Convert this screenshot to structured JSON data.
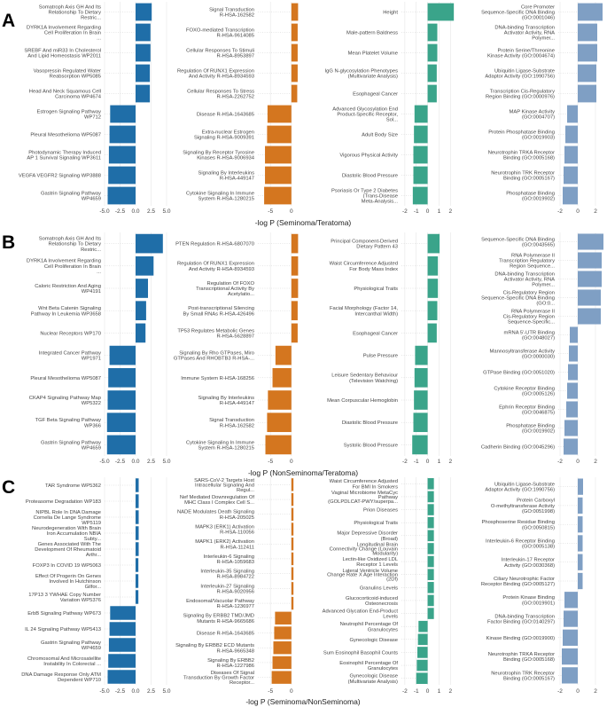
{
  "colors": {
    "blue": "#1f6ea8",
    "orange": "#d4761f",
    "green": "#3aa48a",
    "slate": "#7f9fc4",
    "grid": "#e6e6e6"
  },
  "chart_data": [
    {
      "panel": "A",
      "type": "bar",
      "xlabel": "-log P (Seminoma/Teratoma)",
      "subplots": [
        {
          "color": "blue",
          "xlim": [
            -5,
            5
          ],
          "ticks": [
            -5.0,
            -2.5,
            0.0,
            2.5,
            5.0
          ],
          "tick_labels": [
            "-5.0",
            "-2.5",
            "0.0",
            "2.5",
            "5.0"
          ],
          "categories": [
            "Somatroph Axis GH And Its Relationship To Dietary Restric...",
            "DYRK1A Involvement Regarding Cell Proliferation In Brain ...",
            "SREBF And miR33 In Cholesterol And Lipid Homeostasis WP2011",
            "Vasopressin Regulated Water Reabsorption WP5085",
            "Head And Neck Squamous Cell Carcinoma WP4674",
            "Estrogen Signaling Pathway WP712",
            "Pleural Mesothelioma WP5087",
            "Photodynamic Therapy Induced AP 1 Survival Signaling WP3611",
            "VEGFA VEGFR2 Signaling WP3888",
            "Gastrin Signaling Pathway WP4659"
          ],
          "values": [
            2.6,
            2.4,
            2.4,
            2.3,
            2.3,
            -4.1,
            -4.2,
            -4.3,
            -4.4,
            -4.5
          ]
        },
        {
          "color": "orange",
          "xlim": [
            -8,
            3
          ],
          "ticks": [
            -5,
            0
          ],
          "tick_labels": [
            "-5",
            "0"
          ],
          "categories": [
            "Signal Transduction R-HSA-162582",
            "FOXO-mediated Transcription R-HSA-9614085",
            "Cellular Responses To Stimuli R-HSA-8953897",
            "Regulation Of RUNX1 Expression And Activity R-HSA-8934593",
            "Cellular Responses To Stress R-HSA-2262752",
            "Disease R-HSA-1643685",
            "Extra-nuclear Estrogen Signaling R-HSA-9009391",
            "Signaling By Receptor Tyrosine Kinases R-HSA-9006934",
            "Signaling By Interleukins R-HSA-449147",
            "Cytokine Signaling In Immune System R-HSA-1280215"
          ],
          "values": [
            1.6,
            1.5,
            1.5,
            1.5,
            1.4,
            -5.7,
            -5.8,
            -6.3,
            -6.3,
            -6.5
          ]
        },
        {
          "color": "green",
          "xlim": [
            -2.3,
            2.6
          ],
          "ticks": [
            -2,
            -1,
            0,
            1,
            2
          ],
          "tick_labels": [
            "-2",
            "-1",
            "0",
            "1",
            "2"
          ],
          "categories": [
            "Height",
            "Male-pattern Baldness",
            "Mean Platelet Volume",
            "IgG N-glycosylation Phenotypes (Multivariate Analysis)",
            "Esophageal Cancer",
            "Advanced Glycosylation End Product-Specific Receptor, Sol...",
            "Adult Body Size",
            "Vigorous Physical Activity",
            "Diastolic Blood Pressure",
            "Psoriasis Or Type 2 Diabetes (Trans-Disease Meta-Analysis..."
          ],
          "values": [
            2.3,
            0.85,
            0.85,
            0.8,
            0.8,
            -1.15,
            -1.2,
            -1.25,
            -1.25,
            -1.3
          ]
        },
        {
          "color": "slate",
          "xlim": [
            -2.2,
            3.1
          ],
          "ticks": [
            -2,
            0,
            2
          ],
          "tick_labels": [
            "-2",
            "0",
            "2"
          ],
          "categories": [
            "Core Promoter Sequence-Specific DNA Binding (GO:0001046)",
            "DNA-binding Transcription Activator Activity, RNA Polymer...",
            "Protein Serine/Threonine Kinase Activity (GO:0004674)",
            "Ubiquitin Ligase-Substrate Adaptor Activity (GO:1990756)",
            "Transcription Cis-Regulatory Region Binding (GO:0000976)",
            "MAP Kinase Activity (GO:0004707)",
            "Protein Phosphatase Binding (GO:0019903)",
            "Neurotrophin TRKA Receptor Binding (GO:0005168)",
            "Neurotrophin TRK Receptor Binding (GO:0005167)",
            "Phosphatase Binding (GO:0019902)"
          ],
          "values": [
            2.8,
            2.2,
            2.2,
            2.1,
            2.1,
            -1.2,
            -1.4,
            -1.5,
            -1.6,
            -1.7
          ]
        }
      ]
    },
    {
      "panel": "B",
      "type": "bar",
      "xlabel": "-log P (NonSeminoma/Teratoma)",
      "subplots": [
        {
          "color": "blue",
          "xlim": [
            -5,
            5
          ],
          "ticks": [
            -5.0,
            -2.5,
            0.0,
            2.5,
            5.0
          ],
          "tick_labels": [
            "-5.0",
            "-2.5",
            "0.0",
            "2.5",
            "5.0"
          ],
          "categories": [
            "Somatroph Axis GH And Its Relationship To Dietary Restric...",
            "DYRK1A Involvement Regarding Cell Proliferation In Brain ...",
            "Caloric Restriction And Aging WP4191",
            "Wnt Beta Catenin Signaling Pathway In Leukemia WP3658",
            "Nuclear Receptors WP170",
            "Integrated Cancer Pathway WP1971",
            "Pleural Mesothelioma WP5087",
            "CKAP4 Signaling Pathway Map WP5322",
            "TGF Beta Signaling Pathway WP366",
            "Gastrin Signaling Pathway WP4659"
          ],
          "values": [
            4.4,
            2.9,
            2.0,
            1.7,
            1.6,
            -4.2,
            -4.4,
            -4.5,
            -4.6,
            -4.6
          ]
        },
        {
          "color": "orange",
          "xlim": [
            -8,
            3
          ],
          "ticks": [
            -5,
            0
          ],
          "tick_labels": [
            "-5",
            "0"
          ],
          "categories": [
            "PTEN Regulation R-HSA-6807070",
            "Regulation Of RUNX1 Expression And Activity R-HSA-8934593",
            "Regulation Of FOXO Transcriptional Activity By Acetylatio...",
            "Post-transcriptional Silencing By Small RNAs R-HSA-426496",
            "TP53 Regulates Metabolic Genes R-HSA-5628897",
            "Signaling By Rho GTPases, Miro GTPases And RHOBTB3 R-HSA-...",
            "Immune System R-HSA-168256",
            "Signaling By Interleukins R-HSA-449147",
            "Signal Transduction R-HSA-162582",
            "Cytokine Signaling In Immune System R-HSA-1280215"
          ],
          "values": [
            1.6,
            1.6,
            1.6,
            1.5,
            1.5,
            -3.8,
            -4.5,
            -5.6,
            -5.8,
            -6.2
          ]
        },
        {
          "color": "green",
          "xlim": [
            -2.3,
            2.6
          ],
          "ticks": [
            -2,
            -1,
            0,
            1,
            2
          ],
          "tick_labels": [
            "-2",
            "-1",
            "0",
            "1",
            "2"
          ],
          "categories": [
            "Principal Component-Derived Dietary Pattern 43",
            "Waist Circumference Adjusted For Body Mass Index",
            "Physiological Traits",
            "Facial Morphology (Factor 14, Intercanthal Width)",
            "Esophageal Cancer",
            "Pulse Pressure",
            "Leisure Sedentary Behaviour (Television Watching)",
            "Mean Corpuscular Hemoglobin",
            "Diastolic Blood Pressure",
            "Systolic Blood Pressure"
          ],
          "values": [
            1.05,
            0.9,
            0.9,
            0.85,
            0.8,
            -1.1,
            -1.15,
            -1.2,
            -1.25,
            -1.35
          ]
        },
        {
          "color": "slate",
          "xlim": [
            -2.2,
            3.1
          ],
          "ticks": [
            -2,
            0,
            2
          ],
          "tick_labels": [
            "-2",
            "0",
            "2"
          ],
          "categories": [
            "Sequence-Specific DNA Binding (GO:0043565)",
            "RNA Polymerase II Transcription Regulatory Region Sequence...",
            "DNA-binding Transcription Activator Activity, RNA Polymer...",
            "Cis-Regulatory Region Sequence-Specific DNA Binding (GO:0...",
            "RNA Polymerase II Cis-Regulatory Region Sequence-Specific...",
            "mRNA 5'-UTR Binding (GO:0048027)",
            "Mannosyltransferase Activity (GO:0000030)",
            "GTPase Binding (GO:0051020)",
            "Cytokine Receptor Binding (GO:0005126)",
            "Ephrin Receptor Binding (GO:0046875)",
            "Phosphatase Binding (GO:0019902)",
            "Cadherin Binding (GO:0045296)"
          ],
          "values": [
            2.9,
            2.7,
            2.7,
            2.6,
            2.6,
            -0.9,
            -1.0,
            -1.1,
            -1.2,
            -1.3,
            -1.5,
            -1.6
          ]
        }
      ]
    },
    {
      "panel": "C",
      "type": "bar",
      "xlabel": "-log P (Seminoma/NonSeminoma)",
      "subplots": [
        {
          "color": "blue",
          "xlim": [
            -5,
            5
          ],
          "ticks": [
            -5.0,
            -2.5,
            0.0,
            2.5,
            5.0
          ],
          "tick_labels": [
            "-5.0",
            "-2.5",
            "0.0",
            "2.5",
            "5.0"
          ],
          "categories": [
            "TAR Syndrome WP5362",
            "Proteasome Degradation WP183",
            "NIPBL Role In DNA Damage Cornelia De Lange Syndrome WP5119",
            "Neurodegeneration With Brain Iron Accumulation NBIA Subty...",
            "Genes Associated With The Development Of Rheumatoid Arthr...",
            "FOXP3 In COVID 19 WP5063",
            "Effect Of Progerin On Genes Involved In Hutchinson Gilfor...",
            "17P13 3 YWHAE Copy Number Variation WP5376",
            "ErbB Signaling Pathway WP673",
            "IL 24 Signaling Pathway WP5413",
            "Gastrin Signaling Pathway WP4659",
            "Chromosomal And Microsatellite Instability In Colorectal ...",
            "DNA Damage Response Only ATM Dependent WP710"
          ],
          "values": [
            0.5,
            0.5,
            0.5,
            0.5,
            0.5,
            0.45,
            0.45,
            0.45,
            -4.1,
            -4.2,
            -4.3,
            -4.4,
            -4.5
          ]
        },
        {
          "color": "orange",
          "xlim": [
            -8,
            3
          ],
          "ticks": [
            -5,
            0
          ],
          "tick_labels": [
            "-5",
            "0"
          ],
          "categories": [
            "SARS-CoV-2 Targets Host Intracellular Signaling And Regul...",
            "Nef Mediated Downregulation Of MHC Class I Complex Cell S...",
            "NADE Modulates Death Signaling R-HSA-205025",
            "MAPK3 (ERK1) Activation R-HSA-110056",
            "MAPK1 (ERK2) Activation R-HSA-112411",
            "Interleukin-6 Signaling R-HSA-1059683",
            "Interleukin-35 Signaling R-HSA-8984722",
            "Interleukin-27 Signaling R-HSA-9020956",
            "Endosomal/Vacuolar Pathway R-HSA-1236977",
            "Signaling By ERBB2 TMD/JMD Mutants R-HSA-9665686",
            "Disease R-HSA-1643685",
            "Signaling By ERBB2 ECD Mutants R-HSA-9665348",
            "Signaling By ERBB2 R-HSA-1227986",
            "Diseases Of Signal Transduction By Growth Factor Receptor..."
          ],
          "values": [
            0.5,
            0.5,
            0.5,
            0.5,
            0.5,
            0.5,
            0.5,
            0.5,
            0.5,
            -3.9,
            -4.1,
            -4.3,
            -4.5,
            -4.7
          ]
        },
        {
          "color": "green",
          "xlim": [
            -2.3,
            2.6
          ],
          "ticks": [
            -2,
            -1,
            0,
            1,
            2
          ],
          "tick_labels": [
            "-2",
            "-1",
            "0",
            "1",
            "2"
          ],
          "categories": [
            "Waist Circumference Adjusted For BMI In Smokers",
            "Vaginal Microbiome MetaCyc Pathway (GOLPDLCAT-PWY/superpa...",
            "Prion Diseases",
            "Physiological Traits",
            "Major Depressive Disorder (Broad)",
            "Longitudinal Brain Connectivity Change (Louvain Modularity)",
            "Lectin-like Oxidized LDL Receptor 1 Levels",
            "Lateral Ventricle Volume Change Rate X Age Interaction (2Df)",
            "Granulins Levels",
            "Glucocorticoid-induced Osteonecrosis",
            "Advanced Glycation End-Product Levels",
            "Neutrophil Percentage Of Granulocytes",
            "Gynecologic Disease",
            "Sum Eosinophil Basophil Counts",
            "Eosinophil Percentage Of Granulocytes",
            "Gynecologic Disease (Multivariate Analysis)"
          ],
          "values": [
            0.55,
            0.55,
            0.55,
            0.55,
            0.55,
            0.55,
            0.55,
            0.55,
            0.55,
            0.55,
            0.55,
            -0.8,
            -0.85,
            -0.9,
            -0.95,
            -1.0
          ]
        },
        {
          "color": "slate",
          "xlim": [
            -2.2,
            3.1
          ],
          "ticks": [
            -2,
            0,
            2
          ],
          "tick_labels": [
            "-2",
            "0",
            "2"
          ],
          "categories": [
            "Ubiquitin Ligase-Substrate Adaptor Activity (GO:1990756)",
            "Protein Carboxyl O-methyltransferase Activity (GO:0051998)",
            "Phosphoserine Residue Binding (GO:0050815)",
            "Interleukin-6 Receptor Binding (GO:0005138)",
            "Interleukin-17 Receptor Activity (GO:0030368)",
            "Ciliary Neurotrophic Factor Receptor Binding (GO:0005127)",
            "Protein Kinase Binding (GO:0019901)",
            "DNA-binding Transcription Factor Binding (GO:0140297)",
            "Kinase Binding (GO:0019900)",
            "Neurotrophin TRKA Receptor Binding (GO:0005168)",
            "Neurotrophin TRK Receptor Binding (GO:0005167)"
          ],
          "values": [
            0.6,
            0.55,
            0.55,
            0.55,
            0.55,
            0.55,
            -1.5,
            -1.6,
            -1.7,
            -1.8,
            -1.8
          ]
        }
      ]
    }
  ]
}
